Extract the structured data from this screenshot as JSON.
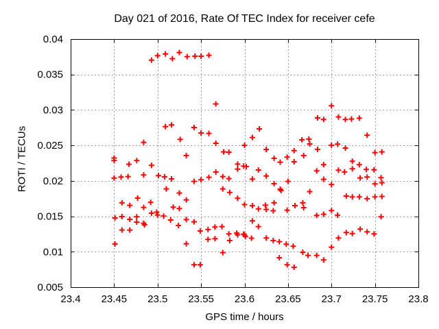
{
  "chart_data": {
    "type": "scatter",
    "title": "Day 021 of 2016, Rate Of TEC Index for receiver cefe",
    "xlabel": "GPS time / hours",
    "ylabel": "ROTI / TECUs",
    "xlim": [
      23.4,
      23.8
    ],
    "ylim": [
      0.005,
      0.04
    ],
    "xticks": [
      "23.4",
      "23.45",
      "23.5",
      "23.55",
      "23.6",
      "23.65",
      "23.7",
      "23.75",
      "23.8"
    ],
    "yticks": [
      "0.005",
      "0.01",
      "0.015",
      "0.02",
      "0.025",
      "0.03",
      "0.035",
      "0.04"
    ],
    "grid": "dotted",
    "legend_position": "none",
    "marker": "plus-cross",
    "marker_color": "#ff0000",
    "frame_color": "#000000",
    "grid_color": "#9e9e9e",
    "background_color": "#ffffff",
    "series": [
      {
        "name": "ROTI",
        "points": [
          [
            23.493,
            0.03703
          ],
          [
            23.5,
            0.03765
          ],
          [
            23.509,
            0.0379
          ],
          [
            23.517,
            0.03723
          ],
          [
            23.525,
            0.0381
          ],
          [
            23.534,
            0.03752
          ],
          [
            23.543,
            0.03758
          ],
          [
            23.55,
            0.03758
          ],
          [
            23.559,
            0.03771
          ],
          [
            23.567,
            0.03085
          ],
          [
            23.684,
            0.02888
          ],
          [
            23.691,
            0.02866
          ],
          [
            23.7,
            0.0306
          ],
          [
            23.708,
            0.02901
          ],
          [
            23.716,
            0.02866
          ],
          [
            23.723,
            0.02872
          ],
          [
            23.732,
            0.02885
          ],
          [
            23.509,
            0.02765
          ],
          [
            23.516,
            0.02789
          ],
          [
            23.484,
            0.02543
          ],
          [
            23.526,
            0.02585
          ],
          [
            23.45,
            0.02322
          ],
          [
            23.45,
            0.02288
          ],
          [
            23.476,
            0.02286
          ],
          [
            23.467,
            0.02234
          ],
          [
            23.493,
            0.02218
          ],
          [
            23.484,
            0.02083
          ],
          [
            23.45,
            0.0204
          ],
          [
            23.458,
            0.02054
          ],
          [
            23.466,
            0.0206
          ],
          [
            23.501,
            0.02073
          ],
          [
            23.508,
            0.02057
          ],
          [
            23.516,
            0.02028
          ],
          [
            23.533,
            0.02356
          ],
          [
            23.51,
            0.01886
          ],
          [
            23.525,
            0.01828
          ],
          [
            23.477,
            0.01757
          ],
          [
            23.459,
            0.0169
          ],
          [
            23.468,
            0.01654
          ],
          [
            23.484,
            0.01625
          ],
          [
            23.492,
            0.01696
          ],
          [
            23.533,
            0.01731
          ],
          [
            23.518,
            0.01629
          ],
          [
            23.525,
            0.01609
          ],
          [
            23.493,
            0.01544
          ],
          [
            23.499,
            0.01559
          ],
          [
            23.5,
            0.01518
          ],
          [
            23.507,
            0.01503
          ],
          [
            23.515,
            0.01448
          ],
          [
            23.524,
            0.0137
          ],
          [
            23.533,
            0.01454
          ],
          [
            23.451,
            0.01477
          ],
          [
            23.459,
            0.01496
          ],
          [
            23.468,
            0.01457
          ],
          [
            23.476,
            0.01493
          ],
          [
            23.476,
            0.01418
          ],
          [
            23.484,
            0.01402
          ],
          [
            23.485,
            0.0138
          ],
          [
            23.459,
            0.01306
          ],
          [
            23.468,
            0.01306
          ],
          [
            23.451,
            0.0111
          ],
          [
            23.533,
            0.01113
          ],
          [
            23.542,
            0.02753
          ],
          [
            23.55,
            0.02675
          ],
          [
            23.559,
            0.02669
          ],
          [
            23.567,
            0.0253
          ],
          [
            23.617,
            0.02733
          ],
          [
            23.609,
            0.02611
          ],
          [
            23.576,
            0.02408
          ],
          [
            23.582,
            0.02405
          ],
          [
            23.6,
            0.02501
          ],
          [
            23.625,
            0.02443
          ],
          [
            23.634,
            0.02318
          ],
          [
            23.641,
            0.02263
          ],
          [
            23.649,
            0.02334
          ],
          [
            23.657,
            0.02427
          ],
          [
            23.657,
            0.02269
          ],
          [
            23.666,
            0.02579
          ],
          [
            23.668,
            0.02356
          ],
          [
            23.592,
            0.02237
          ],
          [
            23.592,
            0.02166
          ],
          [
            23.599,
            0.02208
          ],
          [
            23.602,
            0.02202
          ],
          [
            23.616,
            0.02153
          ],
          [
            23.567,
            0.02124
          ],
          [
            23.575,
            0.0206
          ],
          [
            23.582,
            0.02031
          ],
          [
            23.542,
            0.01992
          ],
          [
            23.55,
            0.02015
          ],
          [
            23.559,
            0.0205
          ],
          [
            23.609,
            0.02025
          ],
          [
            23.625,
            0.02069
          ],
          [
            23.575,
            0.01886
          ],
          [
            23.583,
            0.01837
          ],
          [
            23.634,
            0.0196
          ],
          [
            23.641,
            0.01883
          ],
          [
            23.642,
            0.01864
          ],
          [
            23.65,
            0.01992
          ],
          [
            23.592,
            0.01754
          ],
          [
            23.6,
            0.01665
          ],
          [
            23.609,
            0.01649
          ],
          [
            23.616,
            0.01605
          ],
          [
            23.624,
            0.01656
          ],
          [
            23.625,
            0.01596
          ],
          [
            23.633,
            0.01578
          ],
          [
            23.634,
            0.0169
          ],
          [
            23.649,
            0.01586
          ],
          [
            23.658,
            0.01651
          ],
          [
            23.667,
            0.0169
          ],
          [
            23.668,
            0.01622
          ],
          [
            23.674,
            0.02589
          ],
          [
            23.675,
            0.02521
          ],
          [
            23.684,
            0.02444
          ],
          [
            23.7,
            0.02502
          ],
          [
            23.707,
            0.02518
          ],
          [
            23.716,
            0.02463
          ],
          [
            23.741,
            0.02644
          ],
          [
            23.75,
            0.02398
          ],
          [
            23.758,
            0.02408
          ],
          [
            23.691,
            0.02228
          ],
          [
            23.683,
            0.02141
          ],
          [
            23.708,
            0.02151
          ],
          [
            23.715,
            0.02125
          ],
          [
            23.724,
            0.02276
          ],
          [
            23.732,
            0.02228
          ],
          [
            23.724,
            0.0217
          ],
          [
            23.74,
            0.0216
          ],
          [
            23.749,
            0.02156
          ],
          [
            23.733,
            0.02041
          ],
          [
            23.741,
            0.02054
          ],
          [
            23.691,
            0.02021
          ],
          [
            23.7,
            0.01948
          ],
          [
            23.75,
            0.01957
          ],
          [
            23.757,
            0.02044
          ],
          [
            23.758,
            0.01973
          ],
          [
            23.675,
            0.01847
          ],
          [
            23.717,
            0.01786
          ],
          [
            23.724,
            0.01774
          ],
          [
            23.732,
            0.01774
          ],
          [
            23.741,
            0.01748
          ],
          [
            23.75,
            0.01774
          ],
          [
            23.758,
            0.0178
          ],
          [
            23.542,
            0.01422
          ],
          [
            23.549,
            0.01293
          ],
          [
            23.558,
            0.01313
          ],
          [
            23.566,
            0.01348
          ],
          [
            23.574,
            0.01354
          ],
          [
            23.558,
            0.01174
          ],
          [
            23.566,
            0.01184
          ],
          [
            23.582,
            0.01252
          ],
          [
            23.583,
            0.01158
          ],
          [
            23.591,
            0.01262
          ],
          [
            23.592,
            0.01239
          ],
          [
            23.599,
            0.01249
          ],
          [
            23.6,
            0.01239
          ],
          [
            23.601,
            0.01214
          ],
          [
            23.608,
            0.01191
          ],
          [
            23.609,
            0.01435
          ],
          [
            23.616,
            0.01354
          ],
          [
            23.625,
            0.01194
          ],
          [
            23.633,
            0.01158
          ],
          [
            23.64,
            0.01142
          ],
          [
            23.648,
            0.01107
          ],
          [
            23.656,
            0.01078
          ],
          [
            23.575,
            0.00987
          ],
          [
            23.64,
            0.00916
          ],
          [
            23.649,
            0.00817
          ],
          [
            23.657,
            0.00781
          ],
          [
            23.667,
            0.00993
          ],
          [
            23.542,
            0.00817
          ],
          [
            23.549,
            0.00817
          ],
          [
            23.683,
            0.01513
          ],
          [
            23.691,
            0.01528
          ],
          [
            23.7,
            0.0158
          ],
          [
            23.707,
            0.01516
          ],
          [
            23.757,
            0.01493
          ],
          [
            23.708,
            0.01194
          ],
          [
            23.717,
            0.01271
          ],
          [
            23.724,
            0.01257
          ],
          [
            23.733,
            0.01319
          ],
          [
            23.741,
            0.01281
          ],
          [
            23.749,
            0.01252
          ],
          [
            23.7,
            0.01064
          ],
          [
            23.673,
            0.00948
          ],
          [
            23.683,
            0.00948
          ],
          [
            23.691,
            0.00884
          ]
        ]
      }
    ]
  }
}
